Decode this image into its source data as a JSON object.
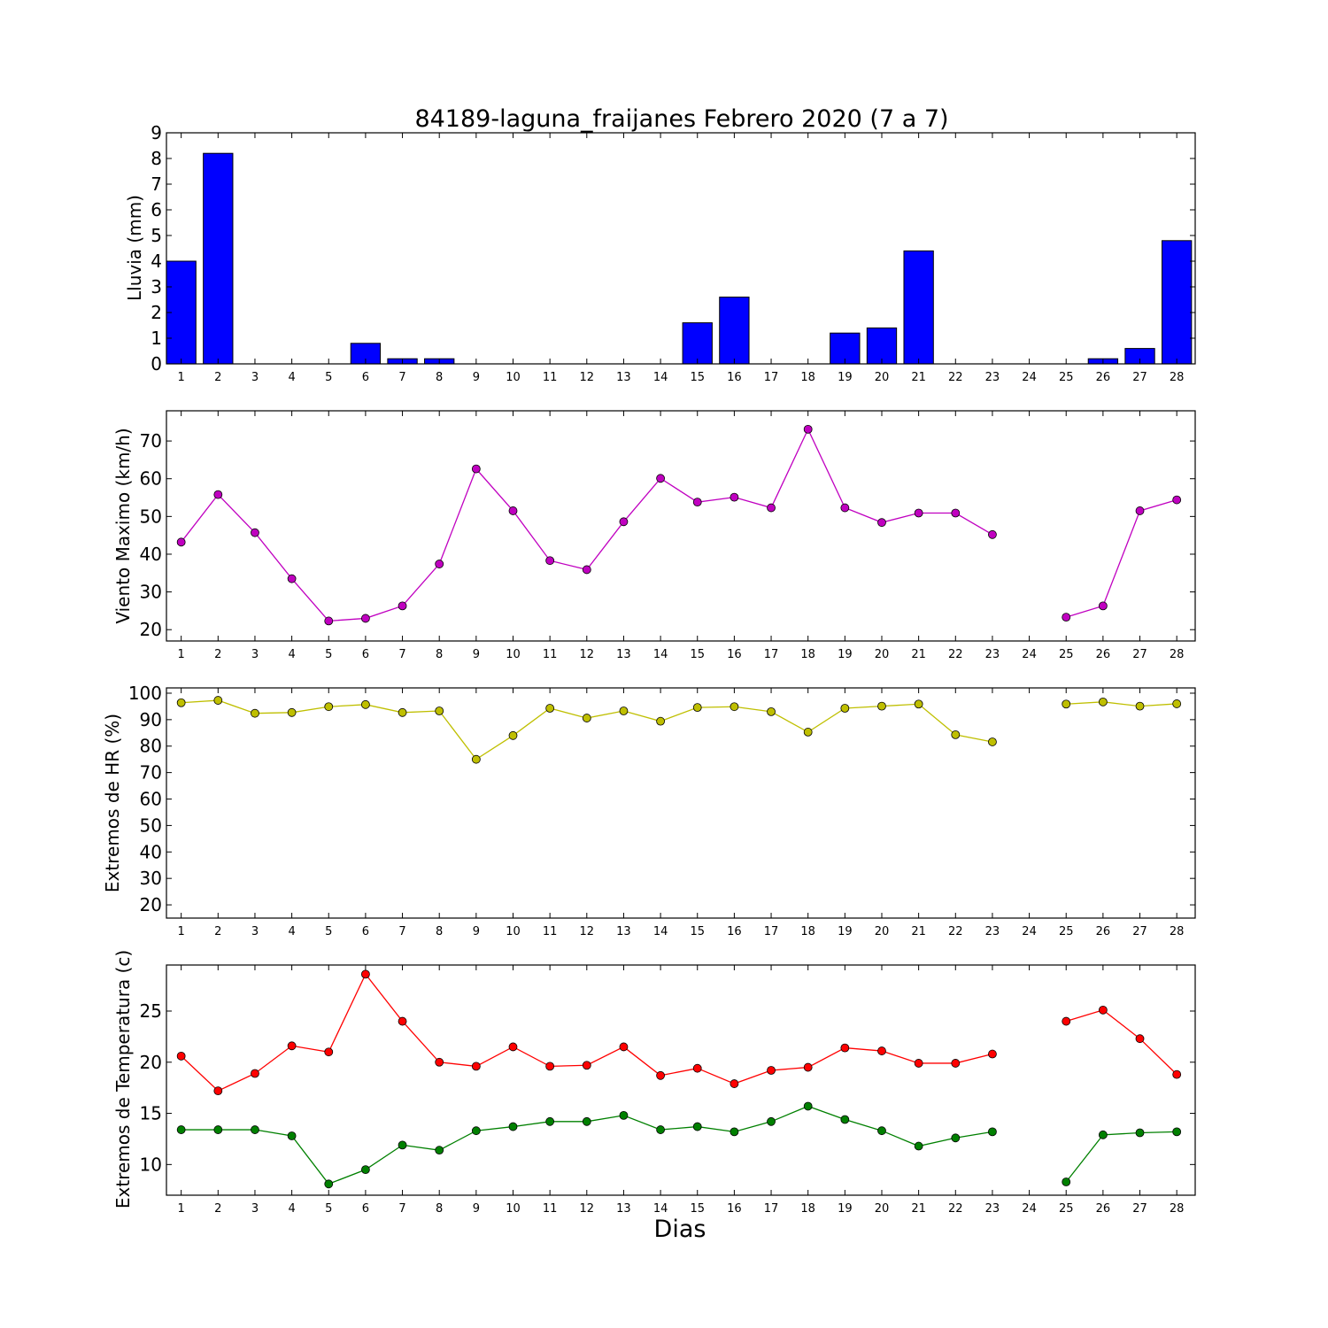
{
  "chart_data": {
    "title": "84189-laguna_fraijanes Febrero 2020  (7 a 7)",
    "xlabel": "Dias",
    "x": [
      1,
      2,
      3,
      4,
      5,
      6,
      7,
      8,
      9,
      10,
      11,
      12,
      13,
      14,
      15,
      16,
      17,
      18,
      19,
      20,
      21,
      22,
      23,
      24,
      25,
      26,
      27,
      28
    ],
    "xlim": [
      0.6,
      28.5
    ],
    "panels": [
      {
        "type": "bar",
        "ylabel": "Lluvia (mm)",
        "ylim": [
          0,
          9
        ],
        "yticks": [
          0,
          1,
          2,
          3,
          4,
          5,
          6,
          7,
          8,
          9
        ],
        "series": [
          {
            "color": "#0000ff",
            "values": [
              4.0,
              8.2,
              0,
              0,
              0,
              0.8,
              0.2,
              0.2,
              0,
              0,
              0,
              0,
              0,
              0,
              1.6,
              2.6,
              0,
              0,
              1.2,
              1.4,
              4.4,
              0,
              0,
              0,
              0,
              0.2,
              0.6,
              4.8
            ]
          }
        ]
      },
      {
        "type": "line",
        "ylabel": "Viento Maximo (km/h)",
        "ylim": [
          17,
          78
        ],
        "yticks": [
          20,
          30,
          40,
          50,
          60,
          70
        ],
        "series": [
          {
            "color": "#c000c0",
            "values": [
              43.2,
              55.8,
              45.7,
              33.5,
              22.3,
              23.0,
              26.3,
              37.4,
              62.6,
              51.5,
              38.3,
              35.9,
              48.6,
              60.1,
              53.8,
              55.1,
              52.3,
              73.1,
              52.3,
              48.4,
              50.9,
              50.9,
              45.2,
              null,
              23.3,
              26.3,
              51.5,
              54.4
            ]
          }
        ]
      },
      {
        "type": "line",
        "ylabel": "Extremos de HR (%)",
        "ylim": [
          15,
          102
        ],
        "yticks": [
          20,
          30,
          40,
          50,
          60,
          70,
          80,
          90,
          100
        ],
        "series": [
          {
            "color": "#bfbf00",
            "values": [
              96.4,
              97.3,
              92.4,
              92.7,
              94.9,
              95.7,
              92.7,
              93.3,
              75.0,
              84.0,
              94.3,
              90.6,
              93.3,
              89.4,
              94.6,
              94.9,
              93.0,
              85.3,
              94.3,
              95.1,
              95.9,
              84.3,
              81.6,
              null,
              95.9,
              96.7,
              95.1,
              96.0
            ]
          }
        ]
      },
      {
        "type": "line",
        "ylabel": "Extremos de Temperatura (c)",
        "ylim": [
          7,
          29.5
        ],
        "yticks": [
          10,
          15,
          20,
          25
        ],
        "series": [
          {
            "color": "#ff0000",
            "values": [
              20.6,
              17.2,
              18.9,
              21.6,
              21.0,
              28.6,
              24.0,
              20.0,
              19.6,
              21.5,
              19.6,
              19.7,
              21.5,
              18.7,
              19.4,
              17.9,
              19.2,
              19.5,
              21.4,
              21.1,
              19.9,
              19.9,
              20.8,
              null,
              24.0,
              25.1,
              22.3,
              18.8
            ]
          },
          {
            "color": "#008000",
            "values": [
              13.4,
              13.4,
              13.4,
              12.8,
              8.1,
              9.5,
              11.9,
              11.4,
              13.3,
              13.7,
              14.2,
              14.2,
              14.8,
              13.4,
              13.7,
              13.2,
              14.2,
              15.7,
              14.4,
              13.3,
              11.8,
              12.6,
              13.2,
              null,
              8.3,
              12.9,
              13.1,
              13.2
            ]
          }
        ]
      }
    ]
  }
}
